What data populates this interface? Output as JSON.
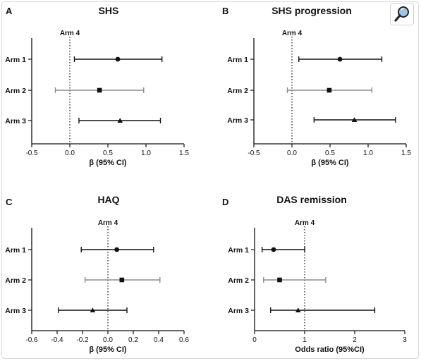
{
  "chart_data": [
    {
      "panel": "A",
      "title": "SHS",
      "type": "forest",
      "reference_label": "Arm 4",
      "reference_value": 0,
      "xlabel": "β (95% CI)",
      "xlim": [
        -0.5,
        1.5
      ],
      "xticks": [
        "-0.5",
        "0.0",
        "0.5",
        "1.0",
        "1.5"
      ],
      "xtick_values": [
        -0.5,
        0,
        0.5,
        1.0,
        1.5
      ],
      "rows": [
        {
          "label": "Arm 1",
          "estimate": 0.63,
          "lower": 0.06,
          "upper": 1.21,
          "marker": "circle"
        },
        {
          "label": "Arm 2",
          "estimate": 0.39,
          "lower": -0.19,
          "upper": 0.97,
          "marker": "square"
        },
        {
          "label": "Arm 3",
          "estimate": 0.66,
          "lower": 0.12,
          "upper": 1.19,
          "marker": "triangle"
        }
      ]
    },
    {
      "panel": "B",
      "title": "SHS progression",
      "type": "forest",
      "reference_label": "Arm 4",
      "reference_value": 0,
      "xlabel": "β (95% CI)",
      "xlim": [
        -0.5,
        1.5
      ],
      "xticks": [
        "-0.5",
        "0.0",
        "0.5",
        "1.0",
        "1.5"
      ],
      "xtick_values": [
        -0.5,
        0,
        0.5,
        1.0,
        1.5
      ],
      "rows": [
        {
          "label": "Arm 1",
          "estimate": 0.63,
          "lower": 0.09,
          "upper": 1.18,
          "marker": "circle"
        },
        {
          "label": "Arm 2",
          "estimate": 0.49,
          "lower": -0.06,
          "upper": 1.05,
          "marker": "square"
        },
        {
          "label": "Arm 3",
          "estimate": 0.82,
          "lower": 0.29,
          "upper": 1.36,
          "marker": "triangle"
        }
      ]
    },
    {
      "panel": "C",
      "title": "HAQ",
      "type": "forest",
      "reference_label": "Arm 4",
      "reference_value": 0,
      "xlabel": "β (95% CI)",
      "xlim": [
        -0.6,
        0.6
      ],
      "xticks": [
        "-0.6",
        "-0.4",
        "-0.2",
        "0.0",
        "0.2",
        "0.4",
        "0.6"
      ],
      "xtick_values": [
        -0.6,
        -0.4,
        -0.2,
        0,
        0.2,
        0.4,
        0.6
      ],
      "rows": [
        {
          "label": "Arm 1",
          "estimate": 0.07,
          "lower": -0.21,
          "upper": 0.36,
          "marker": "circle"
        },
        {
          "label": "Arm 2",
          "estimate": 0.11,
          "lower": -0.18,
          "upper": 0.41,
          "marker": "square"
        },
        {
          "label": "Arm 3",
          "estimate": -0.12,
          "lower": -0.39,
          "upper": 0.15,
          "marker": "triangle"
        }
      ]
    },
    {
      "panel": "D",
      "title": "DAS remission",
      "type": "forest",
      "reference_label": "Arm 4",
      "reference_value": 1,
      "xlabel": "Odds ratio (95%CI)",
      "xlim": [
        0,
        3
      ],
      "xticks": [
        "0",
        "1",
        "2",
        "3"
      ],
      "xtick_values": [
        0,
        1,
        2,
        3
      ],
      "rows": [
        {
          "label": "Arm 1",
          "estimate": 0.38,
          "lower": 0.15,
          "upper": 1.0,
          "marker": "circle"
        },
        {
          "label": "Arm 2",
          "estimate": 0.5,
          "lower": 0.18,
          "upper": 1.42,
          "marker": "square"
        },
        {
          "label": "Arm 3",
          "estimate": 0.87,
          "lower": 0.32,
          "upper": 2.4,
          "marker": "triangle"
        }
      ]
    }
  ],
  "colors": {
    "ink": "#111111",
    "faded_whisker": "#8c8c8c",
    "frame": "#d9d9d9"
  },
  "toolbar": {
    "zoom_icon": "magnifier-icon"
  }
}
